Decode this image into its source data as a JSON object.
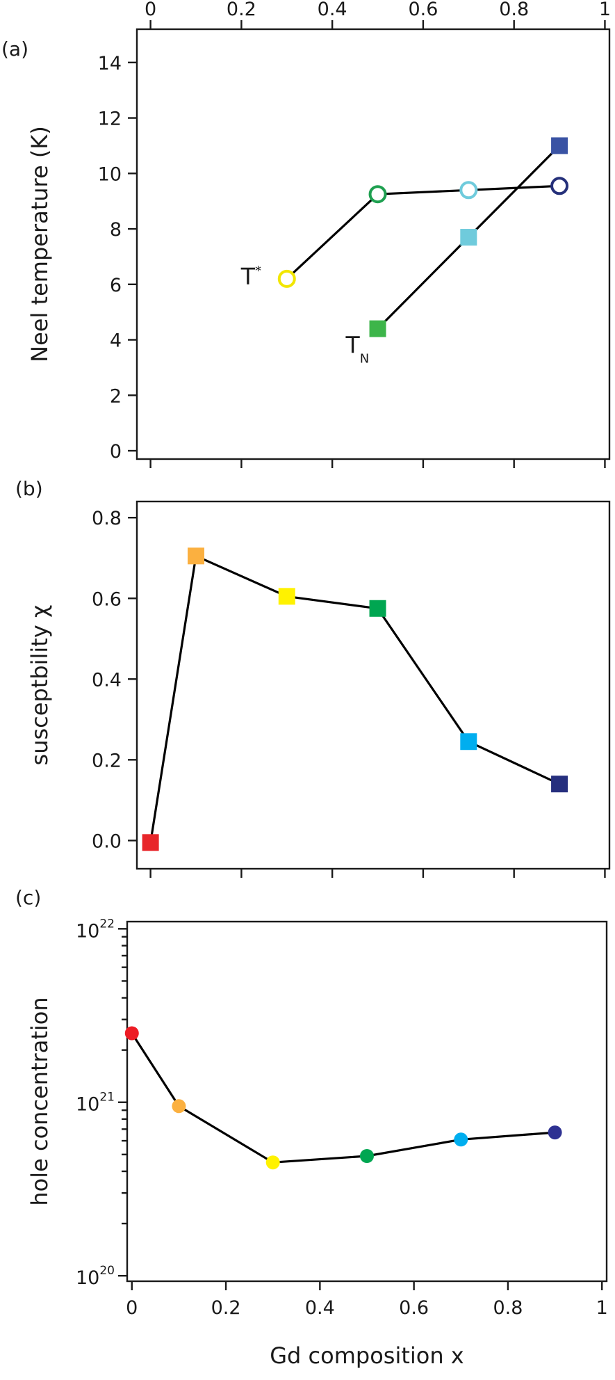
{
  "chart_data": [
    {
      "panel": "(a)",
      "type": "line",
      "xlabel": "",
      "ylabel": "Neel temperature (K)",
      "xlim": [
        -0.03,
        1.01
      ],
      "ylim": [
        -0.3,
        15.2
      ],
      "xticks": [
        0,
        0.2,
        0.4,
        0.6,
        0.8,
        1
      ],
      "xtick_labels": [
        "0",
        "0.2",
        "0.4",
        "0.6",
        "0.8",
        "1"
      ],
      "yticks": [
        0,
        2,
        4,
        6,
        8,
        10,
        12,
        14
      ],
      "ytick_labels": [
        "0",
        "2",
        "4",
        "6",
        "8",
        "10",
        "12",
        "14"
      ],
      "top_axis_labels": true,
      "series": [
        {
          "name": "T*",
          "marker": "open-circle",
          "x": [
            0.3,
            0.5,
            0.7,
            0.9
          ],
          "y": [
            6.2,
            9.25,
            9.4,
            9.55
          ],
          "colors": [
            "#f2e600",
            "#1ea050",
            "#6fcbdc",
            "#25307a"
          ]
        },
        {
          "name": "TN",
          "marker": "filled-square",
          "x": [
            0.5,
            0.7,
            0.9
          ],
          "y": [
            4.4,
            7.7,
            11.0
          ],
          "colors": [
            "#3db54a",
            "#6fcbdc",
            "#3a53a4"
          ]
        }
      ],
      "annotations": [
        {
          "main": "T",
          "sup": "*"
        },
        {
          "main": "T",
          "sub": "N"
        }
      ]
    },
    {
      "panel": "(b)",
      "type": "line",
      "xlabel": "",
      "ylabel": "susceptbility χ",
      "xlim": [
        -0.03,
        1.01
      ],
      "ylim": [
        -0.07,
        0.84
      ],
      "xticks": [
        0,
        0.2,
        0.4,
        0.6,
        0.8,
        1
      ],
      "yticks": [
        0.0,
        0.2,
        0.4,
        0.6,
        0.8
      ],
      "ytick_labels": [
        "0.0",
        "0.2",
        "0.4",
        "0.6",
        "0.8"
      ],
      "series": [
        {
          "marker": "filled-square",
          "x": [
            0,
            0.1,
            0.3,
            0.5,
            0.7,
            0.9
          ],
          "y": [
            -0.005,
            0.705,
            0.605,
            0.575,
            0.245,
            0.14
          ],
          "colors": [
            "#e8262a",
            "#fbb040",
            "#fff200",
            "#00a651",
            "#00aeef",
            "#262f7e"
          ]
        }
      ]
    },
    {
      "panel": "(c)",
      "type": "line",
      "xlabel": "Gd composition x",
      "ylabel": "hole concentration",
      "yscale": "log",
      "xlim": [
        -0.01,
        1.01
      ],
      "ylim": [
        9.3e+19,
        1.1e+22
      ],
      "xticks": [
        0,
        0.2,
        0.4,
        0.6,
        0.8,
        1
      ],
      "xtick_labels": [
        "0",
        "0.2",
        "0.4",
        "0.6",
        "0.8",
        "1"
      ],
      "ytick_labels": [
        {
          "base": "10",
          "exp": "20"
        },
        {
          "base": "10",
          "exp": "21"
        },
        {
          "base": "10",
          "exp": "22"
        }
      ],
      "series": [
        {
          "marker": "filled-circle",
          "x": [
            0,
            0.1,
            0.3,
            0.5,
            0.7,
            0.9
          ],
          "y": [
            2.5e+21,
            9.5e+20,
            4.5e+20,
            4.9e+20,
            6.1e+20,
            6.7e+20
          ],
          "colors": [
            "#ed1c24",
            "#fbb040",
            "#fff200",
            "#00a651",
            "#00aeef",
            "#2e3192"
          ]
        }
      ]
    }
  ]
}
